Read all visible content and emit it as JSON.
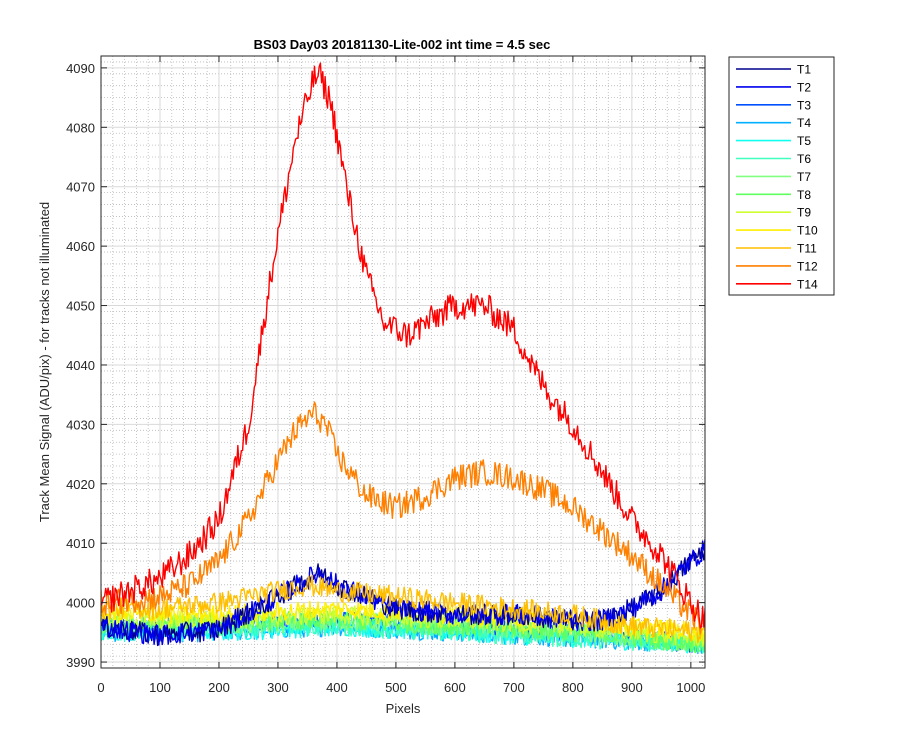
{
  "chart_data": {
    "type": "line",
    "title": "BS03 Day03 20181130-Lite-002 int time = 4.5 sec",
    "xlabel": "Pixels",
    "ylabel": "Track Mean Signal (ADU/pix) - for tracks not illuminated",
    "xlim": [
      0,
      1024
    ],
    "ylim": [
      3989,
      4092
    ],
    "xticks": [
      0,
      100,
      200,
      300,
      400,
      500,
      600,
      700,
      800,
      900,
      1000
    ],
    "yticks": [
      3990,
      4000,
      4010,
      4020,
      4030,
      4040,
      4050,
      4060,
      4070,
      4080,
      4090
    ],
    "grid": true,
    "minor_grid": true,
    "legend_position": "outside-top-right",
    "series": [
      {
        "name": "T1",
        "color": "#00008f",
        "x": [
          0,
          100,
          200,
          300,
          350,
          370,
          400,
          450,
          500,
          600,
          700,
          800,
          850,
          900,
          950,
          1000,
          1024
        ],
        "y": [
          3996,
          3994.5,
          3995.5,
          4001,
          4004,
          4005,
          4003,
          4001,
          3999,
          3998,
          3998,
          3997,
          3997,
          3999,
          4002,
          4007,
          4009
        ]
      },
      {
        "name": "T2",
        "color": "#0000ef",
        "x": [
          0,
          100,
          200,
          300,
          350,
          370,
          400,
          450,
          500,
          600,
          700,
          800,
          850,
          900,
          950,
          1000,
          1024
        ],
        "y": [
          3996,
          3994.5,
          3995.5,
          4001,
          4004,
          4005,
          4003,
          4001,
          3999,
          3998,
          3998,
          3997,
          3997,
          3999,
          4002,
          4007,
          4009
        ]
      },
      {
        "name": "T3",
        "color": "#0050ff",
        "x": [
          0,
          200,
          400,
          600,
          800,
          1024
        ],
        "y": [
          3996,
          3996,
          3997,
          3996,
          3995,
          3993
        ]
      },
      {
        "name": "T4",
        "color": "#00afff",
        "x": [
          0,
          200,
          400,
          600,
          800,
          1024
        ],
        "y": [
          3995,
          3995,
          3996,
          3995,
          3994,
          3993
        ]
      },
      {
        "name": "T5",
        "color": "#10ffef",
        "x": [
          0,
          200,
          400,
          600,
          800,
          1024
        ],
        "y": [
          3995,
          3995,
          3996,
          3995,
          3994,
          3993
        ]
      },
      {
        "name": "T6",
        "color": "#40ffbf",
        "x": [
          0,
          200,
          400,
          600,
          800,
          1024
        ],
        "y": [
          3995,
          3996,
          3996,
          3995,
          3994,
          3993
        ]
      },
      {
        "name": "T7",
        "color": "#80ff80",
        "x": [
          0,
          200,
          400,
          600,
          800,
          1024
        ],
        "y": [
          3996,
          3996,
          3997,
          3996,
          3995,
          3993
        ]
      },
      {
        "name": "T8",
        "color": "#5fff5f",
        "x": [
          0,
          200,
          400,
          600,
          800,
          1024
        ],
        "y": [
          3996,
          3997,
          3997,
          3996,
          3995,
          3993
        ]
      },
      {
        "name": "T9",
        "color": "#cfff30",
        "x": [
          0,
          200,
          400,
          600,
          800,
          1024
        ],
        "y": [
          3997,
          3997,
          3998,
          3997,
          3996,
          3994
        ]
      },
      {
        "name": "T10",
        "color": "#ffef00",
        "x": [
          0,
          200,
          400,
          600,
          800,
          1024
        ],
        "y": [
          3998,
          3998,
          3999,
          3998,
          3997,
          3995
        ]
      },
      {
        "name": "T11",
        "color": "#ffbf00",
        "x": [
          0,
          100,
          200,
          300,
          350,
          400,
          500,
          600,
          700,
          800,
          900,
          1024
        ],
        "y": [
          3999,
          3999,
          4000,
          4002,
          4003,
          4002,
          4001,
          4000,
          3999,
          3998,
          3996,
          3995
        ]
      },
      {
        "name": "T12",
        "color": "#ff8000",
        "x": [
          0,
          50,
          100,
          150,
          200,
          250,
          300,
          330,
          360,
          380,
          400,
          450,
          500,
          550,
          600,
          650,
          700,
          750,
          800,
          850,
          900,
          950,
          1000,
          1024
        ],
        "y": [
          4000,
          4000.5,
          4001,
          4003,
          4007,
          4014,
          4024,
          4029,
          4032,
          4030,
          4025,
          4018,
          4016,
          4018,
          4021,
          4022,
          4021,
          4019,
          4016,
          4012,
          4008,
          4003,
          3998,
          3996
        ]
      },
      {
        "name": "T14",
        "color": "#ff0000",
        "x": [
          0,
          50,
          100,
          150,
          200,
          250,
          280,
          300,
          330,
          360,
          370,
          390,
          420,
          450,
          480,
          520,
          550,
          600,
          650,
          700,
          730,
          760,
          800,
          850,
          900,
          950,
          1000,
          1024
        ],
        "y": [
          4000,
          4002,
          4004,
          4008,
          4014,
          4030,
          4050,
          4062,
          4078,
          4088,
          4089,
          4084,
          4068,
          4055,
          4047,
          4045,
          4047,
          4050,
          4050,
          4046,
          4040,
          4035,
          4030,
          4022,
          4014,
          4008,
          4000,
          3997
        ]
      }
    ]
  }
}
